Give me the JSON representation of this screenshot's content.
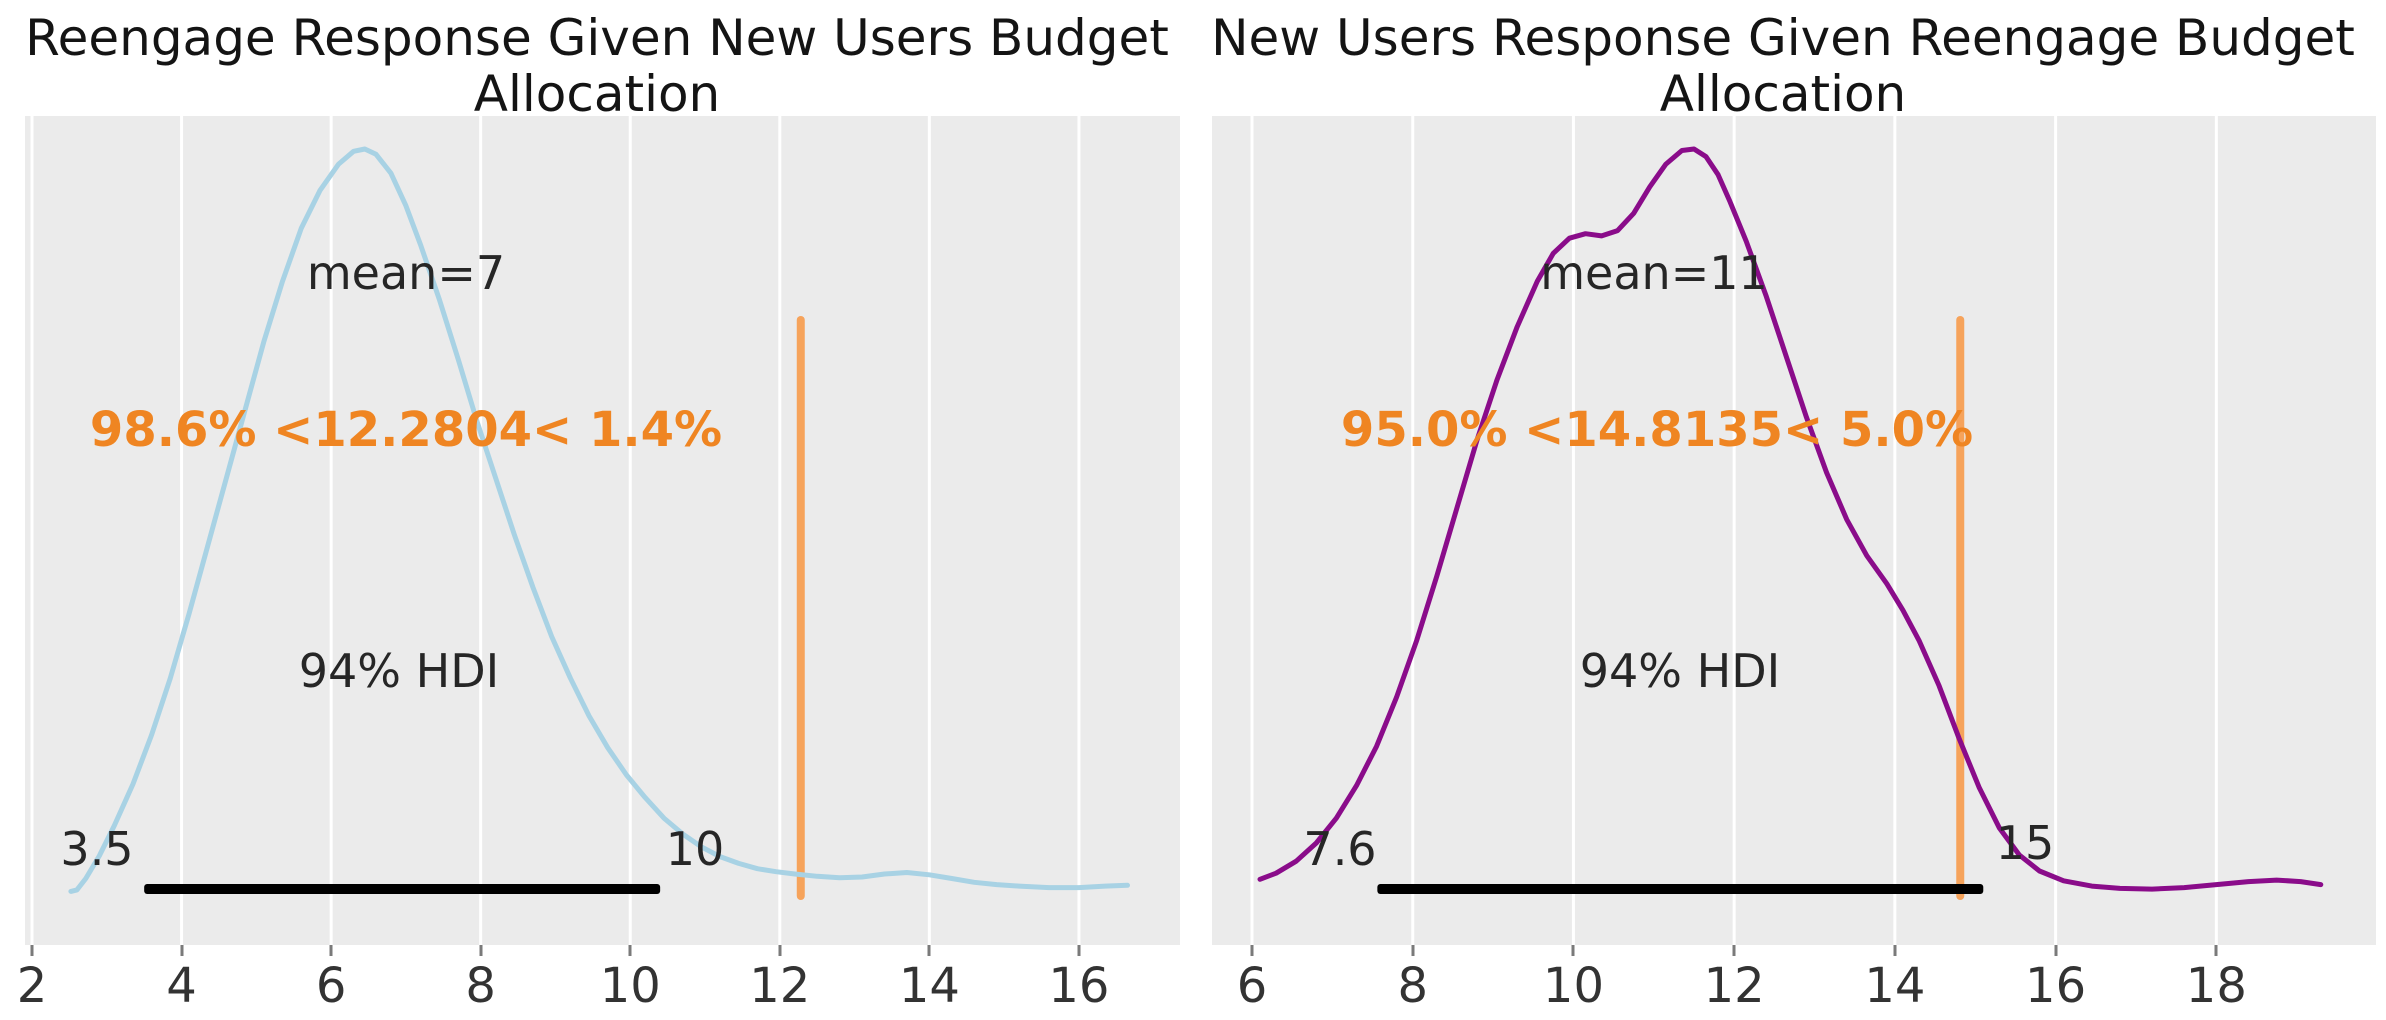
{
  "figure": {
    "background": "#ffffff",
    "panel_background": "#ebebeb",
    "gridline_color": "#ffffff",
    "hdi_bar_color": "#000000",
    "ref_line_color": "#f6a35b",
    "ref_text_color": "#ef8522",
    "tick_label_color": "#333333"
  },
  "chart_data": [
    {
      "type": "kde",
      "title": "Reengage Response Given New Users Budget Allocation",
      "title_lines": "Reengage Response Given New Users Budget\nAllocation",
      "curve_color": "#a8d2e4",
      "mean_label": "mean=7",
      "mean_value": 7,
      "ref_val": 12.2804,
      "ref_val_label": "98.6% <12.2804< 1.4%",
      "pct_below": "98.6%",
      "pct_above": "1.4%",
      "hdi_label": "94% HDI",
      "hdi_lower": 3.5,
      "hdi_upper": 10.4,
      "hdi_lower_label": "3.5",
      "hdi_upper_label": "10",
      "x_ticks": [
        2,
        4,
        6,
        8,
        10,
        12,
        14,
        16
      ],
      "x_range": [
        1.9,
        17.35
      ],
      "kde_x": [
        2.52,
        2.6,
        2.72,
        2.9,
        3.1,
        3.35,
        3.6,
        3.85,
        4.1,
        4.35,
        4.6,
        4.85,
        5.1,
        5.35,
        5.6,
        5.85,
        6.1,
        6.3,
        6.45,
        6.6,
        6.8,
        7.0,
        7.2,
        7.45,
        7.7,
        7.95,
        8.2,
        8.45,
        8.7,
        8.95,
        9.2,
        9.45,
        9.7,
        9.95,
        10.2,
        10.45,
        10.7,
        10.95,
        11.2,
        11.45,
        11.7,
        11.95,
        12.2,
        12.5,
        12.8,
        13.1,
        13.4,
        13.7,
        14.0,
        14.3,
        14.6,
        14.9,
        15.2,
        15.6,
        16.0,
        16.35,
        16.65
      ],
      "kde_density": [
        0.018,
        0.02,
        0.035,
        0.065,
        0.105,
        0.16,
        0.225,
        0.3,
        0.385,
        0.475,
        0.565,
        0.655,
        0.745,
        0.825,
        0.895,
        0.945,
        0.98,
        0.997,
        1.0,
        0.993,
        0.968,
        0.925,
        0.872,
        0.8,
        0.722,
        0.64,
        0.565,
        0.49,
        0.42,
        0.355,
        0.3,
        0.25,
        0.208,
        0.172,
        0.142,
        0.115,
        0.094,
        0.077,
        0.064,
        0.055,
        0.048,
        0.044,
        0.041,
        0.038,
        0.036,
        0.037,
        0.041,
        0.043,
        0.04,
        0.035,
        0.03,
        0.027,
        0.025,
        0.023,
        0.023,
        0.025,
        0.026
      ]
    },
    {
      "type": "kde",
      "title": "New Users Response Given Reengage Budget Allocation",
      "title_lines": "New Users Response Given Reengage Budget\nAllocation",
      "curve_color": "#8a0c8a",
      "mean_label": "mean=11",
      "mean_value": 11,
      "ref_val": 14.8135,
      "ref_val_label": "95.0% <14.8135< 5.0%",
      "pct_below": "95.0%",
      "pct_above": "5.0%",
      "hdi_label": "94% HDI",
      "hdi_lower": 7.56,
      "hdi_upper": 15.1,
      "hdi_lower_label": "7.6",
      "hdi_upper_label": "15",
      "x_ticks": [
        6,
        8,
        10,
        12,
        14,
        16,
        18
      ],
      "x_range": [
        5.5,
        19.98
      ],
      "kde_x": [
        6.1,
        6.3,
        6.55,
        6.8,
        7.05,
        7.3,
        7.55,
        7.8,
        8.05,
        8.3,
        8.55,
        8.8,
        9.05,
        9.3,
        9.55,
        9.75,
        9.95,
        10.15,
        10.35,
        10.55,
        10.75,
        10.95,
        11.15,
        11.35,
        11.5,
        11.65,
        11.8,
        11.95,
        12.15,
        12.4,
        12.65,
        12.9,
        13.15,
        13.4,
        13.65,
        13.9,
        14.1,
        14.3,
        14.55,
        14.8,
        15.05,
        15.3,
        15.55,
        15.8,
        16.1,
        16.45,
        16.8,
        17.2,
        17.6,
        18.0,
        18.4,
        18.75,
        19.05,
        19.3
      ],
      "kde_density": [
        0.034,
        0.042,
        0.058,
        0.082,
        0.115,
        0.158,
        0.21,
        0.275,
        0.35,
        0.435,
        0.525,
        0.615,
        0.695,
        0.765,
        0.825,
        0.862,
        0.882,
        0.888,
        0.885,
        0.892,
        0.915,
        0.95,
        0.98,
        0.998,
        1.0,
        0.99,
        0.966,
        0.93,
        0.878,
        0.805,
        0.725,
        0.645,
        0.572,
        0.51,
        0.462,
        0.425,
        0.39,
        0.35,
        0.29,
        0.22,
        0.155,
        0.102,
        0.066,
        0.045,
        0.032,
        0.025,
        0.022,
        0.021,
        0.023,
        0.027,
        0.031,
        0.033,
        0.031,
        0.027
      ]
    }
  ]
}
